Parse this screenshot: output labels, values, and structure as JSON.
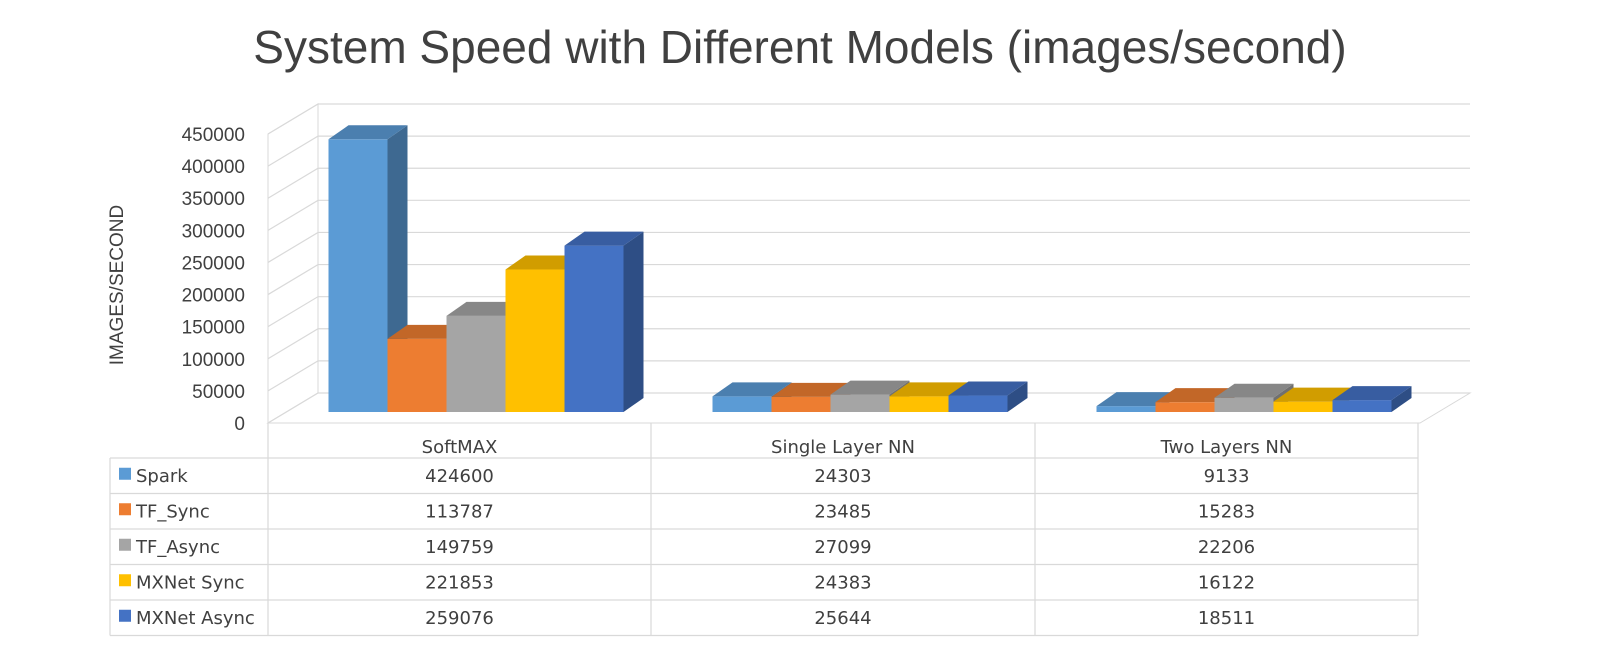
{
  "chart_data": {
    "type": "bar",
    "title": "System Speed with Different Models (images/second)",
    "ylabel": "IMAGES/SECOND",
    "xlabel": "",
    "categories": [
      "SoftMAX",
      "Single Layer NN",
      "Two Layers NN"
    ],
    "yticks": [
      "0",
      "50000",
      "100000",
      "150000",
      "200000",
      "250000",
      "300000",
      "350000",
      "400000",
      "450000"
    ],
    "ylim": [
      0,
      450000
    ],
    "grid": true,
    "legend": "data-table",
    "series": [
      {
        "name": "Spark",
        "color": "#5B9BD5",
        "values": [
          424600,
          24303,
          9133
        ]
      },
      {
        "name": "TF_Sync",
        "color": "#ED7D31",
        "values": [
          113787,
          23485,
          15283
        ]
      },
      {
        "name": "TF_Async",
        "color": "#A5A5A5",
        "values": [
          149759,
          27099,
          22206
        ]
      },
      {
        "name": "MXNet Sync",
        "color": "#FFC000",
        "values": [
          221853,
          24383,
          16122
        ]
      },
      {
        "name": "MXNet Async",
        "color": "#4472C4",
        "values": [
          259076,
          25644,
          18511
        ]
      }
    ],
    "table_values": [
      [
        "424600",
        "24303",
        "9133"
      ],
      [
        "113787",
        "23485",
        "15283"
      ],
      [
        "149759",
        "27099",
        "22206"
      ],
      [
        "221853",
        "24383",
        "16122"
      ],
      [
        "259076",
        "25644",
        "18511"
      ]
    ]
  }
}
